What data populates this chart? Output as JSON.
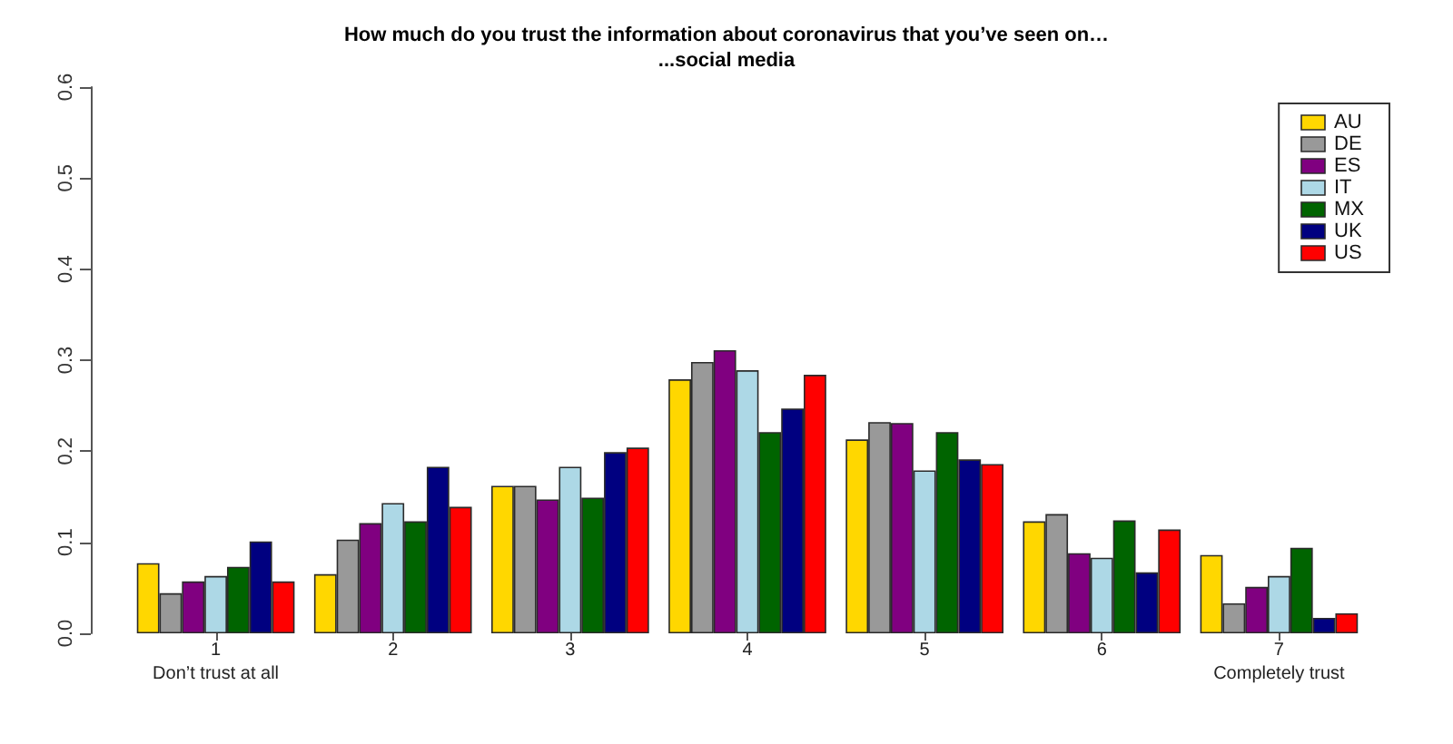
{
  "chart_data": {
    "type": "bar",
    "title": "How much do you trust the information about coronavirus that you’ve seen on…",
    "subtitle": "...social media",
    "categories": [
      "1\nDon’t trust at all",
      "2",
      "3",
      "4",
      "5",
      "6",
      "7\nCompletely trust"
    ],
    "series": [
      {
        "name": "AU",
        "color": "#ffd700",
        "values": [
          0.077,
          0.065,
          0.162,
          0.279,
          0.213,
          0.123,
          0.086
        ]
      },
      {
        "name": "DE",
        "color": "#999999",
        "values": [
          0.044,
          0.103,
          0.162,
          0.298,
          0.232,
          0.131,
          0.033
        ]
      },
      {
        "name": "ES",
        "color": "#800080",
        "values": [
          0.057,
          0.121,
          0.147,
          0.311,
          0.231,
          0.088,
          0.051
        ]
      },
      {
        "name": "IT",
        "color": "#add8e6",
        "values": [
          0.063,
          0.143,
          0.183,
          0.289,
          0.179,
          0.083,
          0.063
        ]
      },
      {
        "name": "MX",
        "color": "#006400",
        "values": [
          0.073,
          0.123,
          0.149,
          0.221,
          0.221,
          0.124,
          0.094
        ]
      },
      {
        "name": "UK",
        "color": "#000080",
        "values": [
          0.101,
          0.183,
          0.199,
          0.247,
          0.191,
          0.067,
          0.017
        ]
      },
      {
        "name": "US",
        "color": "#ff0000",
        "values": [
          0.057,
          0.139,
          0.204,
          0.284,
          0.186,
          0.114,
          0.022
        ]
      }
    ],
    "ylim": [
      0,
      0.6
    ],
    "yticks": [
      {
        "value": 0,
        "label": "0.0"
      },
      0.1,
      0.2,
      0.3,
      0.4,
      0.5,
      0.6
    ],
    "legend": "top right"
  }
}
